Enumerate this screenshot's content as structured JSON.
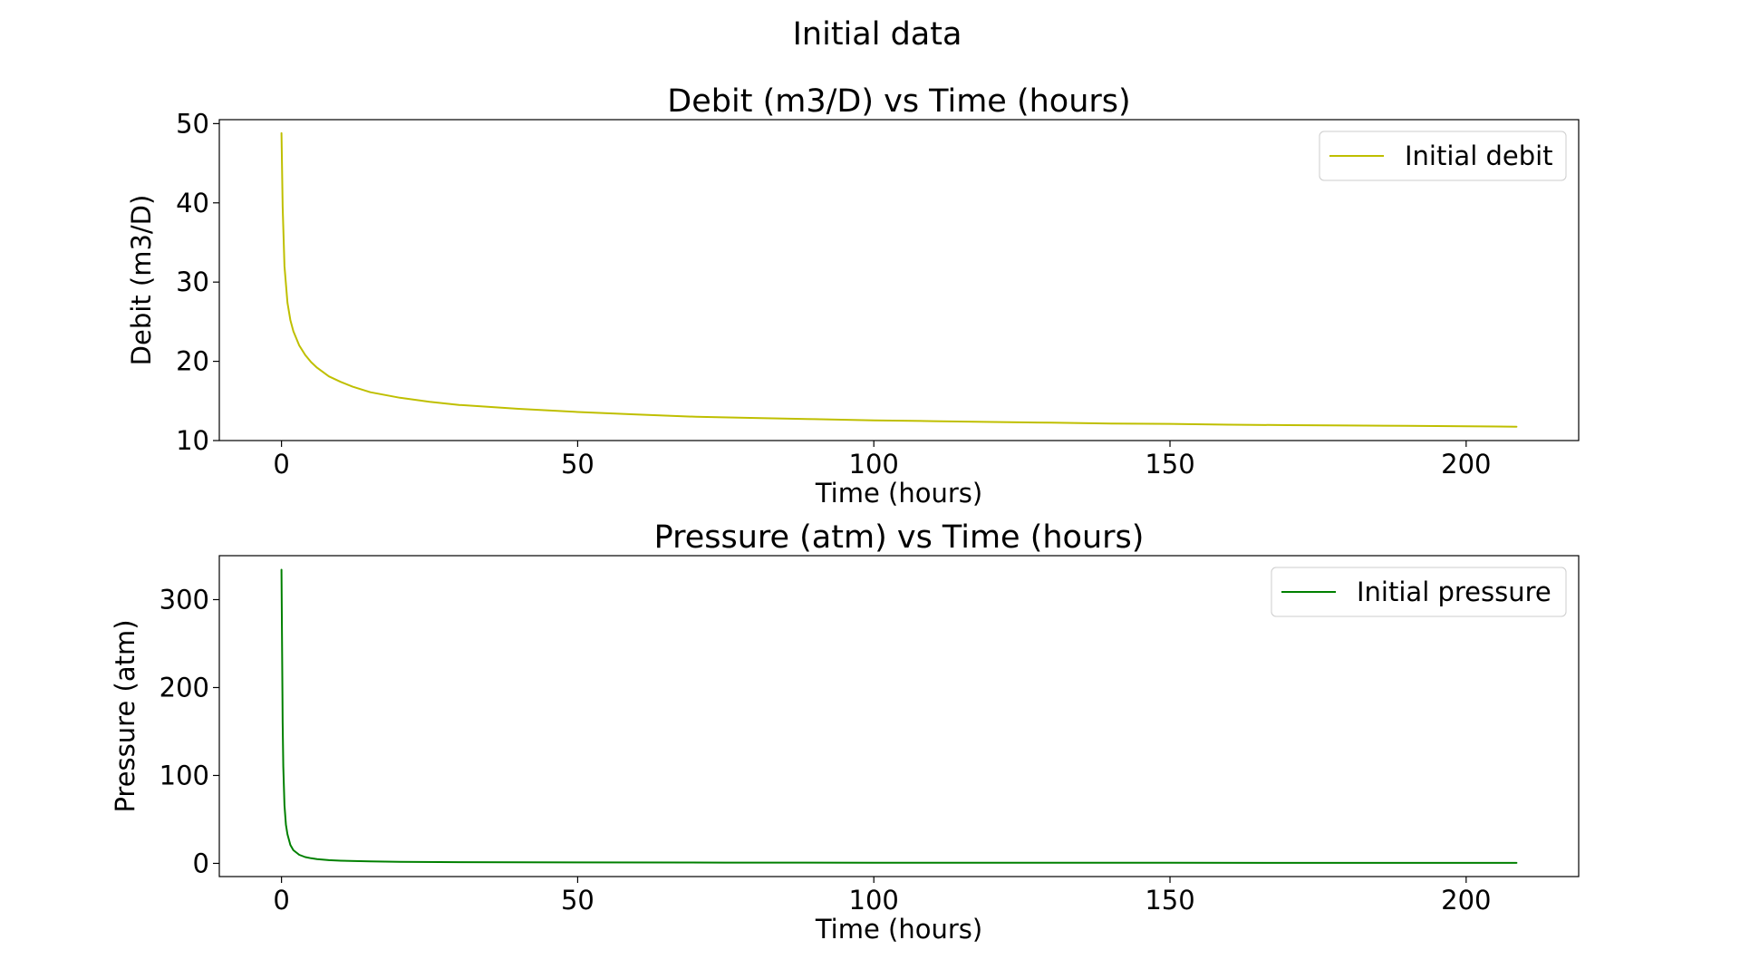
{
  "figure": {
    "suptitle": "Initial data"
  },
  "chart_data": [
    {
      "type": "line",
      "title": "Debit (m3/D) vs Time (hours)",
      "xlabel": "Time (hours)",
      "ylabel": "Debit (m3/D)",
      "xlim": [
        -10.5,
        219
      ],
      "ylim": [
        10,
        50.5
      ],
      "xticks": [
        0,
        50,
        100,
        150,
        200
      ],
      "yticks": [
        10,
        20,
        30,
        40,
        50
      ],
      "xtick_labels": [
        "0",
        "50",
        "100",
        "150",
        "200"
      ],
      "ytick_labels": [
        "10",
        "20",
        "30",
        "40",
        "50"
      ],
      "grid": false,
      "legend_position": "upper right",
      "series": [
        {
          "name": "Initial debit",
          "color": "#bfbf00",
          "x": [
            0,
            0.2,
            0.5,
            1,
            1.5,
            2,
            3,
            4,
            5,
            6,
            8,
            10,
            12,
            15,
            20,
            25,
            30,
            40,
            50,
            60,
            70,
            80,
            90,
            100,
            110,
            120,
            130,
            140,
            150,
            160,
            170,
            180,
            190,
            200,
            208.5
          ],
          "values": [
            48.8,
            39.5,
            32.0,
            27.4,
            25.2,
            23.8,
            22.0,
            20.8,
            19.9,
            19.2,
            18.1,
            17.4,
            16.8,
            16.1,
            15.4,
            14.9,
            14.5,
            14.0,
            13.6,
            13.3,
            13.0,
            12.85,
            12.7,
            12.55,
            12.45,
            12.35,
            12.25,
            12.15,
            12.1,
            12.0,
            11.95,
            11.9,
            11.85,
            11.8,
            11.75
          ]
        }
      ]
    },
    {
      "type": "line",
      "title": "Pressure (atm) vs Time (hours)",
      "xlabel": "Time (hours)",
      "ylabel": "Pressure (atm)",
      "xlim": [
        -10.5,
        219
      ],
      "ylim": [
        -15,
        350
      ],
      "xticks": [
        0,
        50,
        100,
        150,
        200
      ],
      "yticks": [
        0,
        100,
        200,
        300
      ],
      "xtick_labels": [
        "0",
        "50",
        "100",
        "150",
        "200"
      ],
      "ytick_labels": [
        "0",
        "100",
        "200",
        "300"
      ],
      "grid": false,
      "legend_position": "upper right",
      "series": [
        {
          "name": "Initial pressure",
          "color": "#008000",
          "x": [
            0,
            0.1,
            0.2,
            0.3,
            0.5,
            0.75,
            1,
            1.5,
            2,
            3,
            4,
            5,
            6,
            8,
            10,
            15,
            20,
            30,
            50,
            75,
            100,
            150,
            208.5
          ],
          "values": [
            334,
            240,
            160,
            110,
            66,
            44,
            33,
            21,
            15,
            9.7,
            7.2,
            5.8,
            4.8,
            3.7,
            3.0,
            2.2,
            1.8,
            1.4,
            1.1,
            0.9,
            0.8,
            0.7,
            0.6
          ]
        }
      ]
    }
  ]
}
